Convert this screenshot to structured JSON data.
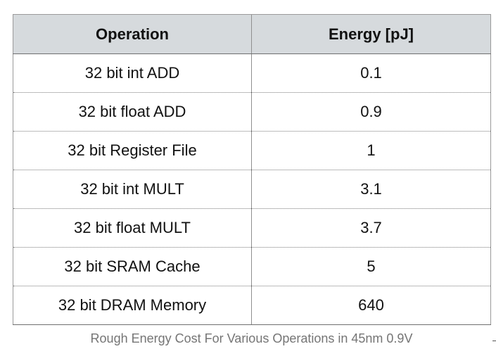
{
  "table": {
    "headers": {
      "operation": "Operation",
      "energy": "Energy [pJ]"
    },
    "rows": [
      {
        "operation": "32 bit int ADD",
        "energy": "0.1"
      },
      {
        "operation": "32 bit float ADD",
        "energy": "0.9"
      },
      {
        "operation": "32 bit Register File",
        "energy": "1"
      },
      {
        "operation": "32 bit int MULT",
        "energy": "3.1"
      },
      {
        "operation": "32 bit float MULT",
        "energy": "3.7"
      },
      {
        "operation": "32 bit SRAM Cache",
        "energy": "5"
      },
      {
        "operation": "32 bit DRAM Memory",
        "energy": "640"
      }
    ]
  },
  "caption": "Rough Energy Cost For Various Operations in 45nm 0.9V",
  "colors": {
    "header_background": "#d6dadd",
    "caption_text": "#757575"
  }
}
